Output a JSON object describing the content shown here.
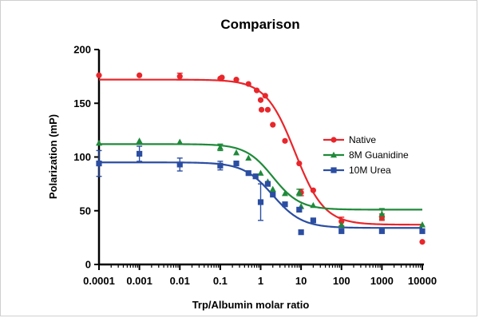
{
  "chart_data": {
    "type": "scatter",
    "title": "Comparison",
    "xlabel": "Trp/Albumin molar ratio",
    "ylabel": "Polarization (mP)",
    "xscale": "log",
    "xlim": [
      0.0001,
      10000
    ],
    "ylim": [
      0,
      200
    ],
    "xticks": [
      0.0001,
      0.001,
      0.01,
      0.1,
      1,
      10,
      100,
      1000,
      10000
    ],
    "xtick_labels": [
      "0.0001",
      "0.001",
      "0.01",
      "0.1",
      "1",
      "10",
      "100",
      "1000",
      "10000"
    ],
    "yticks": [
      0,
      50,
      100,
      150,
      200
    ],
    "ytick_labels": [
      "0",
      "50",
      "100",
      "150",
      "200"
    ],
    "grid": false,
    "legend_position": "right",
    "series": [
      {
        "name": "Native",
        "color": "#e8262b",
        "marker": "circle",
        "points": [
          {
            "x": 0.0001,
            "y": 176
          },
          {
            "x": 0.001,
            "y": 176
          },
          {
            "x": 0.01,
            "y": 175,
            "err": 3
          },
          {
            "x": 0.1,
            "y": 173
          },
          {
            "x": 0.11,
            "y": 174
          },
          {
            "x": 0.25,
            "y": 172
          },
          {
            "x": 0.5,
            "y": 168
          },
          {
            "x": 0.8,
            "y": 162
          },
          {
            "x": 1,
            "y": 153
          },
          {
            "x": 1.05,
            "y": 144
          },
          {
            "x": 1.3,
            "y": 157
          },
          {
            "x": 1.5,
            "y": 144
          },
          {
            "x": 2,
            "y": 130
          },
          {
            "x": 4,
            "y": 115
          },
          {
            "x": 9,
            "y": 94
          },
          {
            "x": 10,
            "y": 67,
            "err": 3
          },
          {
            "x": 20,
            "y": 69
          },
          {
            "x": 100,
            "y": 40,
            "err": 4
          },
          {
            "x": 1000,
            "y": 44,
            "err": 3
          },
          {
            "x": 10000,
            "y": 21
          }
        ],
        "fit": {
          "top": 172,
          "bottom": 37,
          "logec50": 0.85,
          "hill": 1.2
        }
      },
      {
        "name": "8M Guanidine",
        "color": "#1f8a3a",
        "marker": "triangle",
        "points": [
          {
            "x": 0.0001,
            "y": 113
          },
          {
            "x": 0.001,
            "y": 115
          },
          {
            "x": 0.01,
            "y": 114
          },
          {
            "x": 0.1,
            "y": 109,
            "err": 3
          },
          {
            "x": 0.25,
            "y": 104
          },
          {
            "x": 0.5,
            "y": 99
          },
          {
            "x": 1,
            "y": 85
          },
          {
            "x": 1.5,
            "y": 77
          },
          {
            "x": 2,
            "y": 70
          },
          {
            "x": 4,
            "y": 66
          },
          {
            "x": 9,
            "y": 67,
            "err": 3
          },
          {
            "x": 10,
            "y": 54
          },
          {
            "x": 20,
            "y": 55
          },
          {
            "x": 100,
            "y": 37
          },
          {
            "x": 1000,
            "y": 47,
            "err": 5
          },
          {
            "x": 10000,
            "y": 37
          }
        ],
        "fit": {
          "top": 112,
          "bottom": 51,
          "logec50": 0.3,
          "hill": 1.3
        }
      },
      {
        "name": "10M Urea",
        "color": "#2b4ea2",
        "marker": "square",
        "points": [
          {
            "x": 0.0001,
            "y": 94,
            "err": 12
          },
          {
            "x": 0.001,
            "y": 103,
            "err": 7
          },
          {
            "x": 0.01,
            "y": 93,
            "err": 6
          },
          {
            "x": 0.1,
            "y": 92,
            "err": 4
          },
          {
            "x": 0.25,
            "y": 94
          },
          {
            "x": 0.5,
            "y": 85
          },
          {
            "x": 0.75,
            "y": 82
          },
          {
            "x": 1,
            "y": 58,
            "err": 17
          },
          {
            "x": 1.5,
            "y": 75
          },
          {
            "x": 2,
            "y": 65
          },
          {
            "x": 4,
            "y": 56
          },
          {
            "x": 9,
            "y": 51
          },
          {
            "x": 10,
            "y": 30
          },
          {
            "x": 20,
            "y": 41
          },
          {
            "x": 100,
            "y": 31
          },
          {
            "x": 1000,
            "y": 31
          },
          {
            "x": 10000,
            "y": 31
          }
        ],
        "fit": {
          "top": 95,
          "bottom": 34,
          "logec50": 0.3,
          "hill": 1.2
        }
      }
    ]
  }
}
